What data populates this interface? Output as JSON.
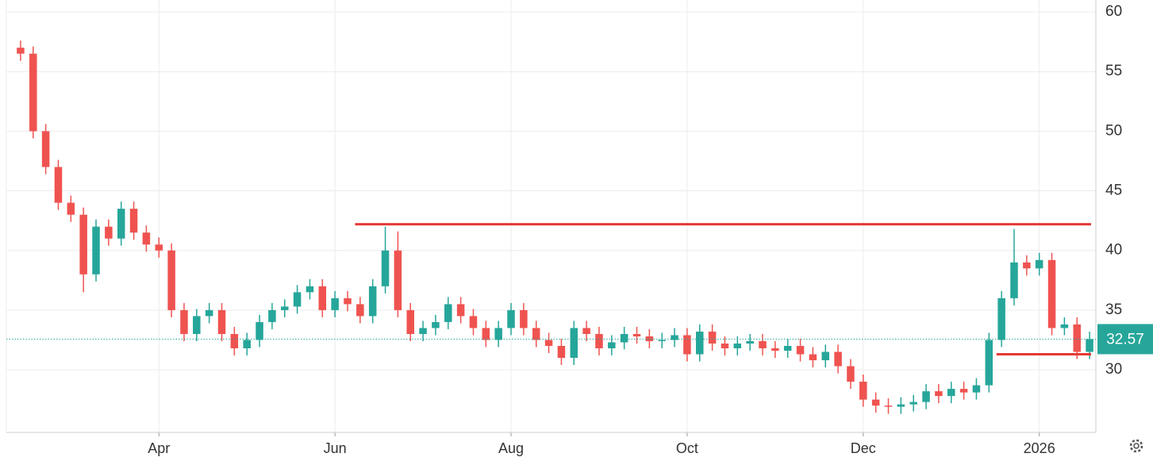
{
  "chart_data": {
    "type": "candlestick",
    "categories": [
      null,
      null,
      null,
      null,
      null,
      null,
      null,
      null,
      null,
      null,
      null,
      "Apr",
      null,
      null,
      null,
      null,
      null,
      null,
      null,
      null,
      null,
      null,
      null,
      null,
      null,
      "Jun",
      null,
      null,
      null,
      null,
      null,
      null,
      null,
      null,
      null,
      null,
      null,
      null,
      null,
      "Aug",
      null,
      null,
      null,
      null,
      null,
      null,
      null,
      null,
      null,
      null,
      null,
      null,
      null,
      "Oct",
      null,
      null,
      null,
      null,
      null,
      null,
      null,
      null,
      null,
      null,
      null,
      null,
      null,
      "Dec",
      null,
      null,
      null,
      null,
      null,
      null,
      null,
      null,
      null,
      null,
      null,
      null,
      null,
      "2026",
      null,
      null,
      null,
      null
    ],
    "open": [
      57,
      56.5,
      50,
      47,
      44,
      43,
      38,
      42,
      41,
      43.5,
      41.5,
      40.5,
      40,
      35,
      33,
      34.5,
      35,
      33,
      31.8,
      32.5,
      34,
      35,
      35.3,
      36.5,
      37,
      35,
      36,
      35.5,
      34.5,
      37,
      40,
      35,
      33,
      33.5,
      34,
      35.5,
      34.5,
      33.5,
      32.5,
      33.5,
      35,
      33.5,
      32.5,
      32,
      31,
      33.5,
      33,
      31.8,
      32.3,
      33,
      32.8,
      32.4,
      32.5,
      32.9,
      31.3,
      33.2,
      32.2,
      31.8,
      32.2,
      32.4,
      31.8,
      31.6,
      32,
      31.3,
      30.8,
      31.5,
      30.3,
      29,
      27.5,
      27,
      26.9,
      27.1,
      27.3,
      28.2,
      27.8,
      28.4,
      28.1,
      28.7,
      32.5,
      36,
      39,
      38.5,
      39.2,
      33.5,
      33.8,
      31.5
    ],
    "high": [
      57.6,
      57.1,
      50.6,
      47.6,
      44.6,
      43.6,
      42.6,
      42.6,
      44.1,
      44.1,
      42.1,
      41.1,
      40.6,
      35.6,
      35.1,
      35.6,
      35.6,
      33.6,
      33.1,
      34.6,
      35.6,
      35.9,
      37.1,
      37.6,
      37.6,
      36.6,
      36.6,
      36.1,
      37.6,
      42,
      41.6,
      35.6,
      34.1,
      34.6,
      36.1,
      36.1,
      35.1,
      34.1,
      34.1,
      35.6,
      35.6,
      34.1,
      33.1,
      32.6,
      34.1,
      34.1,
      33.6,
      32.9,
      33.6,
      33.6,
      33.4,
      33.1,
      33.5,
      33.5,
      33.8,
      33.8,
      32.8,
      32.8,
      33,
      33,
      32.4,
      32.6,
      32.6,
      31.9,
      32.1,
      32.1,
      30.9,
      29.6,
      28.1,
      27.6,
      27.7,
      27.9,
      28.8,
      28.8,
      29,
      29,
      29.3,
      33.1,
      36.6,
      41.8,
      39.6,
      39.8,
      39.8,
      34.4,
      34.4,
      33.2
    ],
    "low": [
      55.9,
      49.4,
      46.4,
      43.4,
      42.4,
      36.5,
      37.4,
      40.4,
      40.4,
      40.9,
      39.9,
      39.4,
      34.4,
      32.4,
      32.4,
      33.9,
      32.4,
      31.2,
      31.2,
      31.9,
      33.4,
      34.4,
      34.7,
      35.9,
      34.4,
      34.4,
      34.9,
      33.9,
      33.9,
      36.4,
      34.4,
      32.4,
      32.4,
      32.9,
      33.4,
      33.9,
      32.9,
      31.9,
      31.9,
      32.9,
      32.9,
      31.9,
      31.4,
      30.4,
      30.4,
      32.4,
      31.2,
      31.2,
      31.7,
      32.2,
      31.8,
      31.8,
      31.9,
      30.7,
      30.7,
      31.6,
      31.2,
      31.2,
      31.6,
      31.2,
      31,
      31,
      30.7,
      30.2,
      30.2,
      29.7,
      28.4,
      26.9,
      26.4,
      26.3,
      26.3,
      26.5,
      26.7,
      27.2,
      27.2,
      27.5,
      27.5,
      28.1,
      31.9,
      35.4,
      37.9,
      37.9,
      32.9,
      32.9,
      30.9,
      30.9
    ],
    "close": [
      56.5,
      50,
      47,
      44,
      43,
      38,
      42,
      41,
      43.5,
      41.5,
      40.5,
      40,
      35,
      33,
      34.5,
      35,
      33,
      31.8,
      32.5,
      34,
      35,
      35.3,
      36.5,
      37,
      35,
      36,
      35.5,
      34.5,
      37,
      40,
      35,
      33,
      33.5,
      34,
      35.5,
      34.5,
      33.5,
      32.5,
      33.5,
      35,
      33.5,
      32.5,
      32,
      31,
      33.5,
      33,
      31.8,
      32.3,
      33,
      32.8,
      32.4,
      32.5,
      32.9,
      31.3,
      33.2,
      32.2,
      31.8,
      32.2,
      32.4,
      31.8,
      31.6,
      32,
      31.3,
      30.8,
      31.5,
      30.3,
      29,
      27.5,
      27,
      26.9,
      27.1,
      27.3,
      28.2,
      27.8,
      28.4,
      28.1,
      28.7,
      32.5,
      36,
      39,
      38.5,
      39.2,
      33.5,
      33.8,
      31.5,
      32.57
    ],
    "up_color": "#26a69a",
    "down_color": "#ef5350",
    "ylim": [
      24.75,
      61
    ],
    "yticks": [
      30,
      35,
      40,
      45,
      50,
      55,
      60
    ],
    "grid": true,
    "last_price": 32.57,
    "last_price_color": "#26a69a",
    "levels": [
      42.2,
      31.3
    ],
    "level_color": "#e53935"
  }
}
